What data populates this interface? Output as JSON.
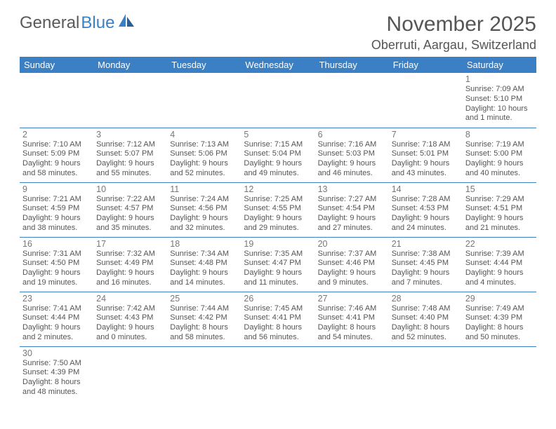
{
  "brand": {
    "name1": "General",
    "name2": "Blue"
  },
  "title": "November 2025",
  "location": "Oberruti, Aargau, Switzerland",
  "colors": {
    "header_bg": "#3b7fc4",
    "header_text": "#ffffff",
    "divider": "#3b7fc4",
    "text": "#555555",
    "muted": "#777777",
    "background": "#ffffff"
  },
  "calendar": {
    "type": "table",
    "columns": [
      "Sunday",
      "Monday",
      "Tuesday",
      "Wednesday",
      "Thursday",
      "Friday",
      "Saturday"
    ],
    "col_count": 7,
    "font_size_header": 13,
    "font_size_daynum": 12.5,
    "font_size_info": 11,
    "weeks": [
      [
        null,
        null,
        null,
        null,
        null,
        null,
        {
          "n": "1",
          "sr": "Sunrise: 7:09 AM",
          "ss": "Sunset: 5:10 PM",
          "dl": "Daylight: 10 hours and 1 minute."
        }
      ],
      [
        {
          "n": "2",
          "sr": "Sunrise: 7:10 AM",
          "ss": "Sunset: 5:09 PM",
          "dl": "Daylight: 9 hours and 58 minutes."
        },
        {
          "n": "3",
          "sr": "Sunrise: 7:12 AM",
          "ss": "Sunset: 5:07 PM",
          "dl": "Daylight: 9 hours and 55 minutes."
        },
        {
          "n": "4",
          "sr": "Sunrise: 7:13 AM",
          "ss": "Sunset: 5:06 PM",
          "dl": "Daylight: 9 hours and 52 minutes."
        },
        {
          "n": "5",
          "sr": "Sunrise: 7:15 AM",
          "ss": "Sunset: 5:04 PM",
          "dl": "Daylight: 9 hours and 49 minutes."
        },
        {
          "n": "6",
          "sr": "Sunrise: 7:16 AM",
          "ss": "Sunset: 5:03 PM",
          "dl": "Daylight: 9 hours and 46 minutes."
        },
        {
          "n": "7",
          "sr": "Sunrise: 7:18 AM",
          "ss": "Sunset: 5:01 PM",
          "dl": "Daylight: 9 hours and 43 minutes."
        },
        {
          "n": "8",
          "sr": "Sunrise: 7:19 AM",
          "ss": "Sunset: 5:00 PM",
          "dl": "Daylight: 9 hours and 40 minutes."
        }
      ],
      [
        {
          "n": "9",
          "sr": "Sunrise: 7:21 AM",
          "ss": "Sunset: 4:59 PM",
          "dl": "Daylight: 9 hours and 38 minutes."
        },
        {
          "n": "10",
          "sr": "Sunrise: 7:22 AM",
          "ss": "Sunset: 4:57 PM",
          "dl": "Daylight: 9 hours and 35 minutes."
        },
        {
          "n": "11",
          "sr": "Sunrise: 7:24 AM",
          "ss": "Sunset: 4:56 PM",
          "dl": "Daylight: 9 hours and 32 minutes."
        },
        {
          "n": "12",
          "sr": "Sunrise: 7:25 AM",
          "ss": "Sunset: 4:55 PM",
          "dl": "Daylight: 9 hours and 29 minutes."
        },
        {
          "n": "13",
          "sr": "Sunrise: 7:27 AM",
          "ss": "Sunset: 4:54 PM",
          "dl": "Daylight: 9 hours and 27 minutes."
        },
        {
          "n": "14",
          "sr": "Sunrise: 7:28 AM",
          "ss": "Sunset: 4:53 PM",
          "dl": "Daylight: 9 hours and 24 minutes."
        },
        {
          "n": "15",
          "sr": "Sunrise: 7:29 AM",
          "ss": "Sunset: 4:51 PM",
          "dl": "Daylight: 9 hours and 21 minutes."
        }
      ],
      [
        {
          "n": "16",
          "sr": "Sunrise: 7:31 AM",
          "ss": "Sunset: 4:50 PM",
          "dl": "Daylight: 9 hours and 19 minutes."
        },
        {
          "n": "17",
          "sr": "Sunrise: 7:32 AM",
          "ss": "Sunset: 4:49 PM",
          "dl": "Daylight: 9 hours and 16 minutes."
        },
        {
          "n": "18",
          "sr": "Sunrise: 7:34 AM",
          "ss": "Sunset: 4:48 PM",
          "dl": "Daylight: 9 hours and 14 minutes."
        },
        {
          "n": "19",
          "sr": "Sunrise: 7:35 AM",
          "ss": "Sunset: 4:47 PM",
          "dl": "Daylight: 9 hours and 11 minutes."
        },
        {
          "n": "20",
          "sr": "Sunrise: 7:37 AM",
          "ss": "Sunset: 4:46 PM",
          "dl": "Daylight: 9 hours and 9 minutes."
        },
        {
          "n": "21",
          "sr": "Sunrise: 7:38 AM",
          "ss": "Sunset: 4:45 PM",
          "dl": "Daylight: 9 hours and 7 minutes."
        },
        {
          "n": "22",
          "sr": "Sunrise: 7:39 AM",
          "ss": "Sunset: 4:44 PM",
          "dl": "Daylight: 9 hours and 4 minutes."
        }
      ],
      [
        {
          "n": "23",
          "sr": "Sunrise: 7:41 AM",
          "ss": "Sunset: 4:44 PM",
          "dl": "Daylight: 9 hours and 2 minutes."
        },
        {
          "n": "24",
          "sr": "Sunrise: 7:42 AM",
          "ss": "Sunset: 4:43 PM",
          "dl": "Daylight: 9 hours and 0 minutes."
        },
        {
          "n": "25",
          "sr": "Sunrise: 7:44 AM",
          "ss": "Sunset: 4:42 PM",
          "dl": "Daylight: 8 hours and 58 minutes."
        },
        {
          "n": "26",
          "sr": "Sunrise: 7:45 AM",
          "ss": "Sunset: 4:41 PM",
          "dl": "Daylight: 8 hours and 56 minutes."
        },
        {
          "n": "27",
          "sr": "Sunrise: 7:46 AM",
          "ss": "Sunset: 4:41 PM",
          "dl": "Daylight: 8 hours and 54 minutes."
        },
        {
          "n": "28",
          "sr": "Sunrise: 7:48 AM",
          "ss": "Sunset: 4:40 PM",
          "dl": "Daylight: 8 hours and 52 minutes."
        },
        {
          "n": "29",
          "sr": "Sunrise: 7:49 AM",
          "ss": "Sunset: 4:39 PM",
          "dl": "Daylight: 8 hours and 50 minutes."
        }
      ],
      [
        {
          "n": "30",
          "sr": "Sunrise: 7:50 AM",
          "ss": "Sunset: 4:39 PM",
          "dl": "Daylight: 8 hours and 48 minutes."
        },
        null,
        null,
        null,
        null,
        null,
        null
      ]
    ]
  }
}
